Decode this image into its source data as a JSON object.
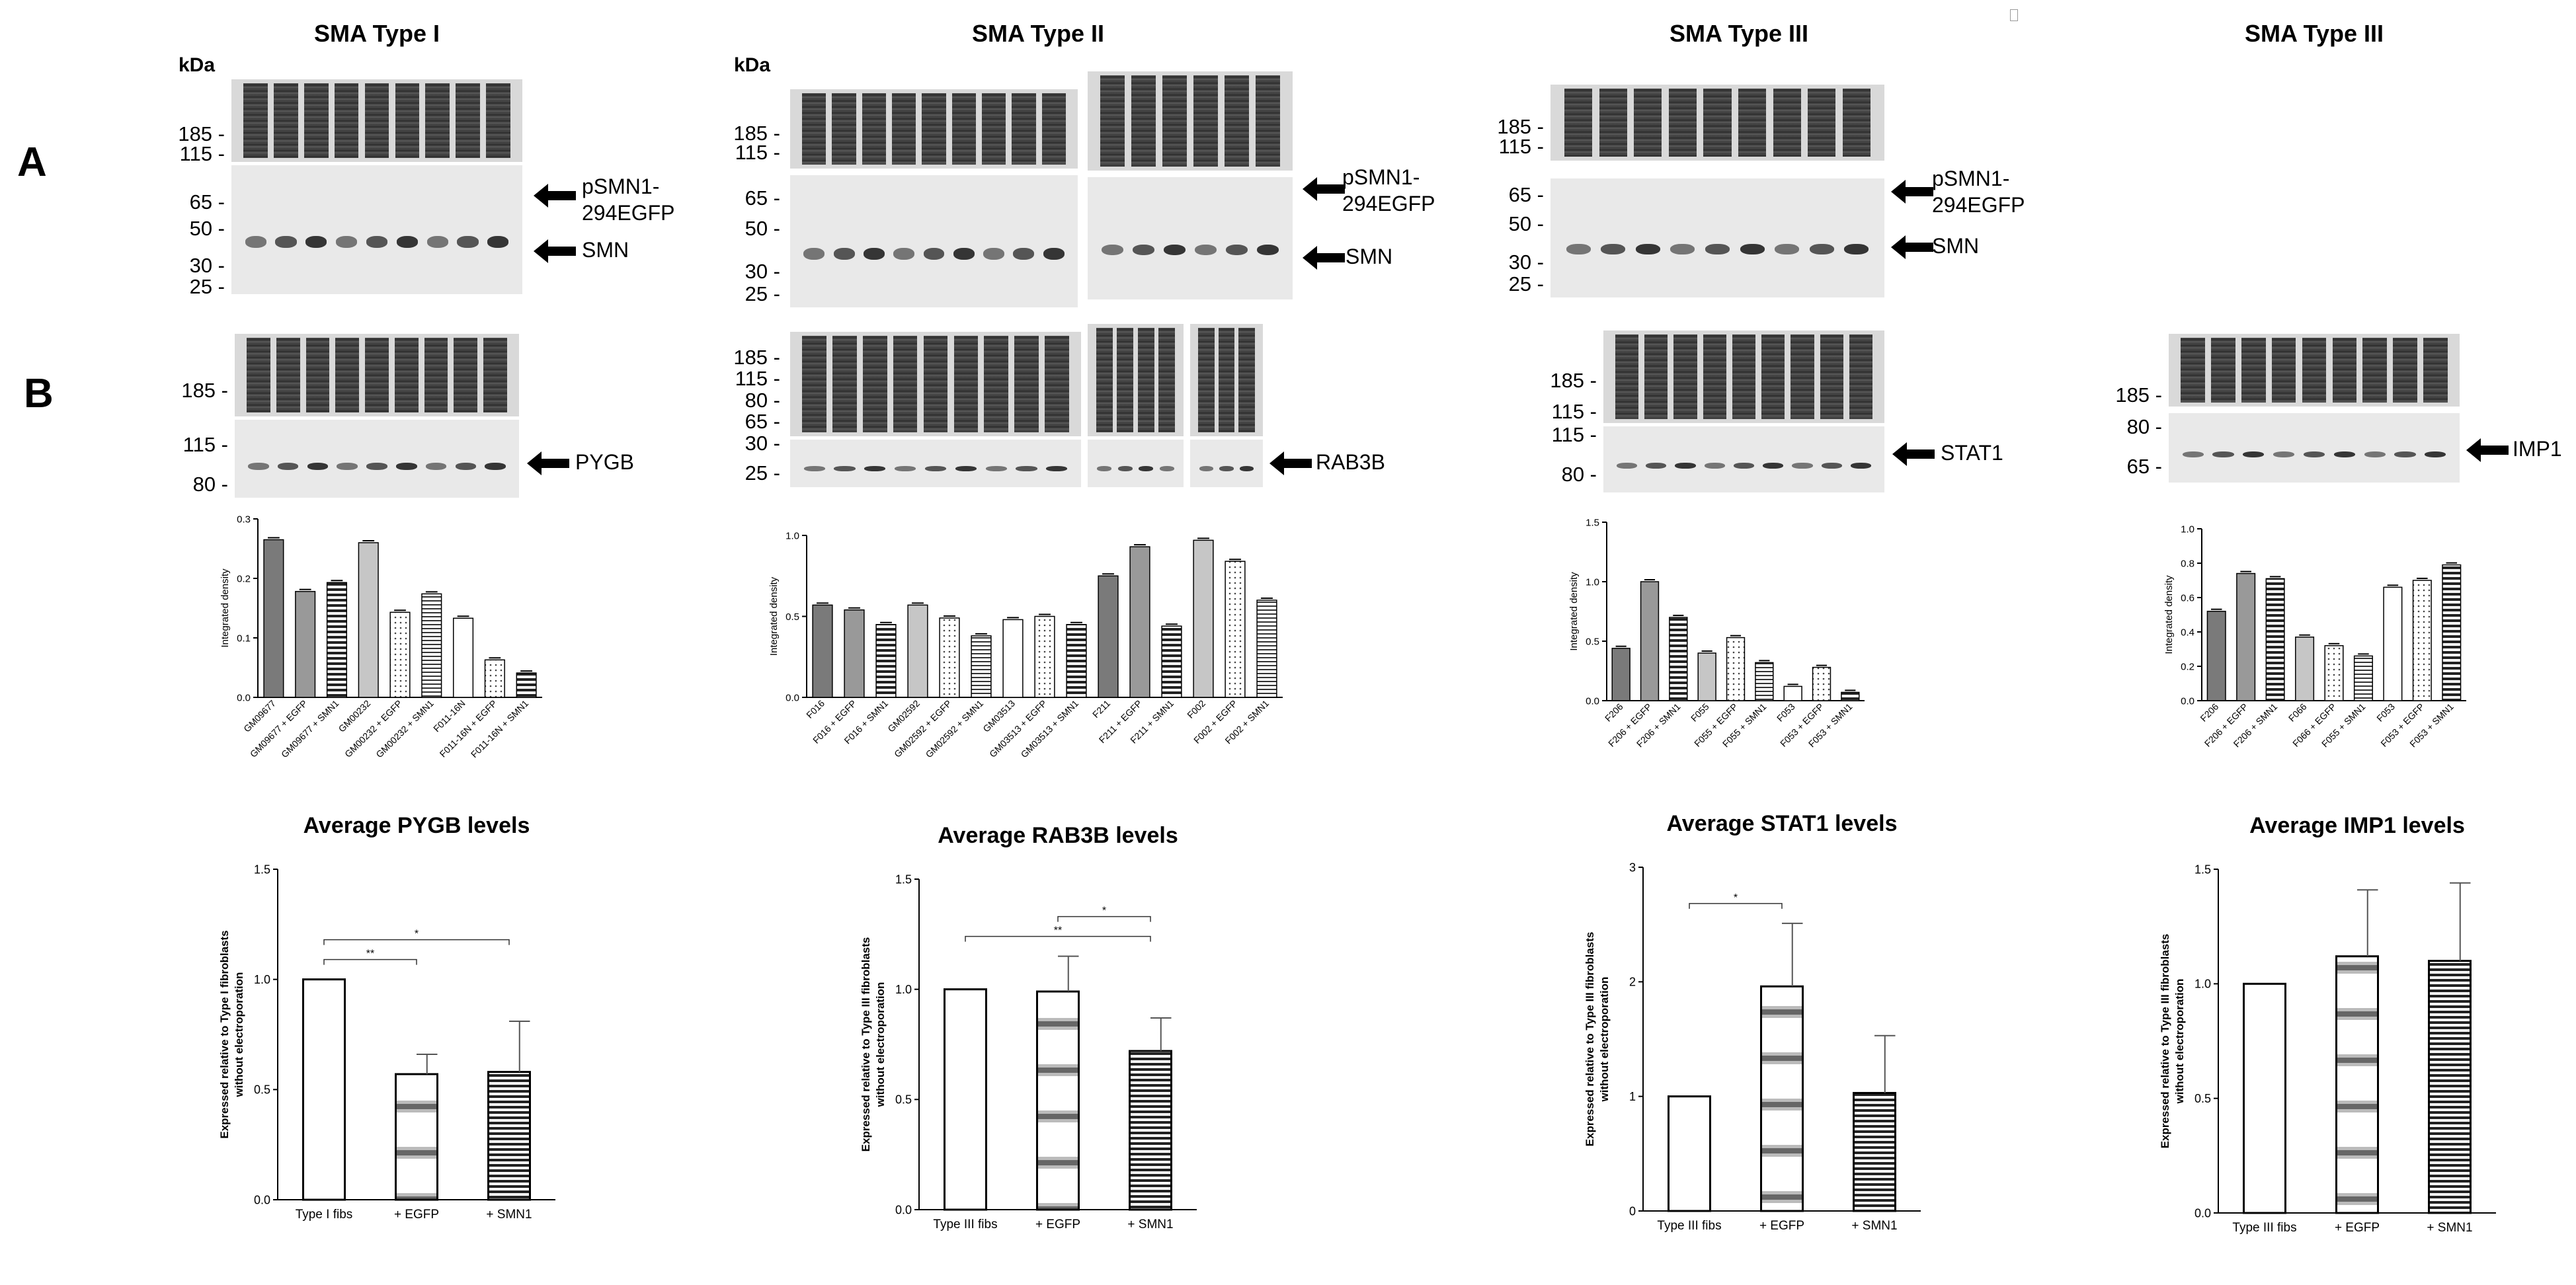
{
  "panels": {
    "a": "A",
    "b": "B"
  },
  "sections": [
    {
      "title": "SMA Type I"
    },
    {
      "title": "SMA Type II"
    },
    {
      "title": "SMA Type III"
    },
    {
      "title": "SMA Type III"
    }
  ],
  "kda": "kDa",
  "blot_labels": {
    "psmn1_line1": "pSMN1-",
    "psmn1_line2": "294EGFP",
    "smn": "SMN",
    "pygb": "PYGB",
    "rab3b": "RAB3B",
    "stat1": "STAT1",
    "imp1": "IMP1"
  },
  "colors": {
    "lane_dark": "#3a3a3a",
    "band": "#151515",
    "blot_bg": "#e9e9e9",
    "bar_gray": "#777777",
    "bar_light": "#bdbdbd"
  },
  "markers": {
    "sma1_a": [
      "185",
      "115",
      "65",
      "50",
      "30",
      "25"
    ],
    "sma2_a": [
      "185",
      "115",
      "65",
      "50",
      "30",
      "25"
    ],
    "sma3_a": [
      "185",
      "115",
      "65",
      "50",
      "30",
      "25"
    ],
    "sma1_b": [
      "185",
      "115",
      "80"
    ],
    "sma2_b": [
      "185",
      "115",
      "80",
      "65",
      "30",
      "25"
    ],
    "sma3_b": [
      "185",
      "115",
      "115",
      "80"
    ],
    "sma3b_b": [
      "185",
      "80",
      "65"
    ]
  },
  "chart_data": [
    {
      "type": "bar",
      "ylabel": "Integrated density",
      "ylim": [
        0,
        0.3
      ],
      "yticks": [
        "0.0",
        "0.1",
        "0.2",
        "0.3"
      ],
      "categories": [
        "GM09677",
        "GM09677 + EGFP",
        "GM09677 + SMN1",
        "GM00232",
        "GM00232 + EGFP",
        "GM00232 + SMN1",
        "F011-16N",
        "F011-16N + EGFP",
        "F011-16N + SMN1"
      ],
      "values": [
        0.265,
        0.178,
        0.193,
        0.26,
        0.143,
        0.174,
        0.133,
        0.063,
        0.041
      ]
    },
    {
      "type": "bar",
      "ylabel": "Integrated density",
      "ylim": [
        0,
        1.0
      ],
      "yticks": [
        "0.0",
        "0.5",
        "1.0"
      ],
      "categories": [
        "F016",
        "F016 + EGFP",
        "F016 + SMN1",
        "GM02592",
        "GM02592 + EGFP",
        "GM02592 + SMN1",
        "GM03513",
        "GM03513 + EGFP",
        "GM03513 + SMN1",
        "F211",
        "F211 + EGFP",
        "F211 + SMN1",
        "F002",
        "F002 + EGFP",
        "F002 + SMN1"
      ],
      "values": [
        0.57,
        0.54,
        0.45,
        0.57,
        0.49,
        0.38,
        0.48,
        0.5,
        0.45,
        0.75,
        0.93,
        0.44,
        0.97,
        0.84,
        0.6
      ]
    },
    {
      "type": "bar",
      "ylabel": "Integrated density",
      "ylim": [
        0,
        1.5
      ],
      "yticks": [
        "0.0",
        "0.5",
        "1.0",
        "1.5"
      ],
      "categories": [
        "F206",
        "F206 + EGFP",
        "F206 + SMN1",
        "F055",
        "F055 + EGFP",
        "F055 + SMN1",
        "F053",
        "F053 + EGFP",
        "F053 + SMN1"
      ],
      "values": [
        0.44,
        1.0,
        0.7,
        0.4,
        0.53,
        0.32,
        0.12,
        0.28,
        0.07
      ]
    },
    {
      "type": "bar",
      "ylabel": "Integrated density",
      "ylim": [
        0,
        1.0
      ],
      "yticks": [
        "0.0",
        "0.2",
        "0.4",
        "0.6",
        "0.8",
        "1.0"
      ],
      "categories": [
        "F206",
        "F206 + EGFP",
        "F206 + SMN1",
        "F066",
        "F066 + EGFP",
        "F055 + SMN1",
        "F053",
        "F053 + EGFP",
        "F053 + SMN1"
      ],
      "values": [
        0.52,
        0.74,
        0.71,
        0.37,
        0.32,
        0.26,
        0.66,
        0.7,
        0.79
      ]
    },
    {
      "type": "bar",
      "title": "Average PYGB levels",
      "ylabel": "Expressed relative to Type I fibroblasts without electroporation",
      "ylim": [
        0,
        1.5
      ],
      "yticks": [
        "0.0",
        "0.5",
        "1.0",
        "1.5"
      ],
      "categories": [
        "Type I fibs",
        "+ EGFP",
        "+ SMN1"
      ],
      "values": [
        1.0,
        0.57,
        0.58
      ],
      "errors": [
        0,
        0.09,
        0.23
      ],
      "sig": [
        {
          "from": 0,
          "to": 1,
          "label": "**"
        },
        {
          "from": 0,
          "to": 2,
          "label": "*"
        }
      ]
    },
    {
      "type": "bar",
      "title": "Average RAB3B levels",
      "ylabel": "Expressed relative to Type III fibroblasts without electroporation",
      "ylim": [
        0,
        1.5
      ],
      "yticks": [
        "0.0",
        "0.5",
        "1.0",
        "1.5"
      ],
      "categories": [
        "Type III fibs",
        "+ EGFP",
        "+ SMN1"
      ],
      "values": [
        1.0,
        0.99,
        0.72
      ],
      "errors": [
        0,
        0.16,
        0.15
      ],
      "sig": [
        {
          "from": 0,
          "to": 2,
          "label": "**"
        },
        {
          "from": 1,
          "to": 2,
          "label": "*"
        }
      ]
    },
    {
      "type": "bar",
      "title": "Average STAT1 levels",
      "ylabel": "Expressed relative to Type III fibroblasts without electroporation",
      "ylim": [
        0,
        3
      ],
      "yticks": [
        "0",
        "1",
        "2",
        "3"
      ],
      "categories": [
        "Type III fibs",
        "+ EGFP",
        "+ SMN1"
      ],
      "values": [
        1.0,
        1.96,
        1.03
      ],
      "errors": [
        0,
        0.55,
        0.5
      ],
      "sig": [
        {
          "from": 0,
          "to": 1,
          "label": "*"
        }
      ]
    },
    {
      "type": "bar",
      "title": "Average IMP1 levels",
      "ylabel": "Expressed relative to Type III fibroblasts without electroporation",
      "ylim": [
        0,
        1.5
      ],
      "yticks": [
        "0.0",
        "0.5",
        "1.0",
        "1.5"
      ],
      "categories": [
        "Type III fibs",
        "+ EGFP",
        "+ SMN1"
      ],
      "values": [
        1.0,
        1.12,
        1.1
      ],
      "errors": [
        0,
        0.29,
        0.34
      ],
      "sig": []
    }
  ]
}
